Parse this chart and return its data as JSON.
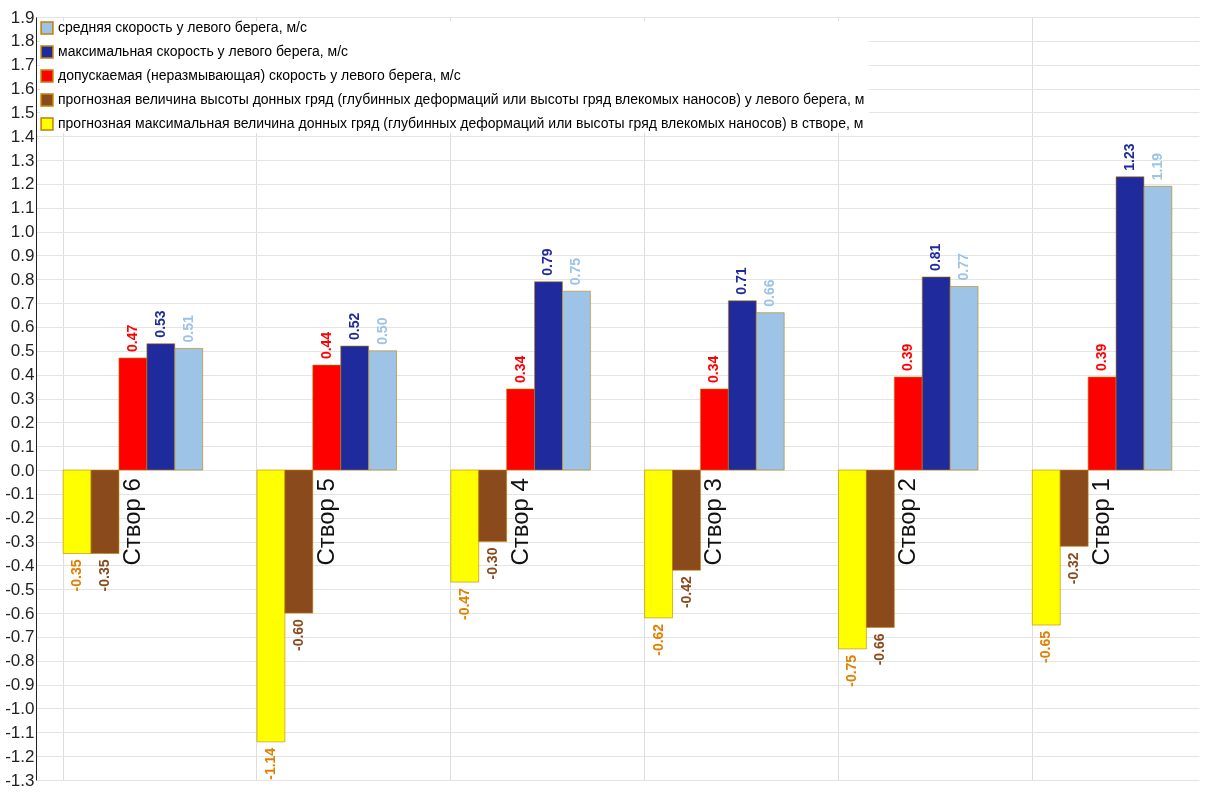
{
  "chart_data": {
    "type": "bar",
    "categories": [
      "Створ 6",
      "Створ 5",
      "Створ 4",
      "Створ 3",
      "Створ 2",
      "Створ 1"
    ],
    "series": [
      {
        "name": "прогнозная максимальная величина донных гряд (глубинных деформаций или высоты гряд влекомых наносов) в створе, м",
        "color": "#ffff00",
        "values": [
          -0.35,
          -1.14,
          -0.47,
          -0.62,
          -0.75,
          -0.65
        ],
        "value_labels": [
          "-0.35",
          "-1.14",
          "-0.47",
          "-0.62",
          "-0.75",
          "-0.65"
        ]
      },
      {
        "name": "прогнозная  величина высоты донных гряд (глубинных деформаций или высоты гряд влекомых наносов) у левого берега, м",
        "color": "#8b4a1c",
        "values": [
          -0.35,
          -0.6,
          -0.3,
          -0.42,
          -0.66,
          -0.32
        ],
        "value_labels": [
          "-0.35",
          "-0.60",
          "-0.30",
          "-0.42",
          "-0.66",
          "-0.32"
        ]
      },
      {
        "name": "допускаемая (неразмывающая) скорость у левого берега, м/с",
        "color": "#ff0000",
        "values": [
          0.47,
          0.44,
          0.34,
          0.34,
          0.39,
          0.39
        ],
        "value_labels": [
          "0.47",
          "0.44",
          "0.34",
          "0.34",
          "0.39",
          "0.39"
        ]
      },
      {
        "name": "максимальная скорость у левого берега, м/с",
        "color": "#1f2a9c",
        "values": [
          0.53,
          0.52,
          0.79,
          0.71,
          0.81,
          1.23
        ],
        "value_labels": [
          "0.53",
          "0.52",
          "0.79",
          "0.71",
          "0.81",
          "1.23"
        ]
      },
      {
        "name": "средняя скорость у левого берега, м/с",
        "color": "#9dc3e6",
        "values": [
          0.51,
          0.5,
          0.75,
          0.66,
          0.77,
          1.19
        ],
        "value_labels": [
          "0.51",
          "0.50",
          "0.75",
          "0.66",
          "0.77",
          "1.19"
        ]
      }
    ],
    "ylim": [
      -1.3,
      1.9
    ],
    "yticks": [
      -1.3,
      -1.2,
      -1.1,
      {
        "value": -1,
        "label": "-1.0"
      },
      -0.9,
      -0.8,
      -0.7,
      -0.6,
      -0.5,
      -0.4,
      -0.3,
      -0.2,
      -0.1,
      {
        "value": 0,
        "label": "0.0"
      },
      0.1,
      0.2,
      0.3,
      0.4,
      0.5,
      0.6,
      0.7,
      0.8,
      0.9,
      {
        "value": 1,
        "label": "1.0"
      },
      1.1,
      1.2,
      1.3,
      1.4,
      1.5,
      1.6,
      1.7,
      1.8,
      1.9
    ],
    "grid": true,
    "legend": "top left"
  }
}
